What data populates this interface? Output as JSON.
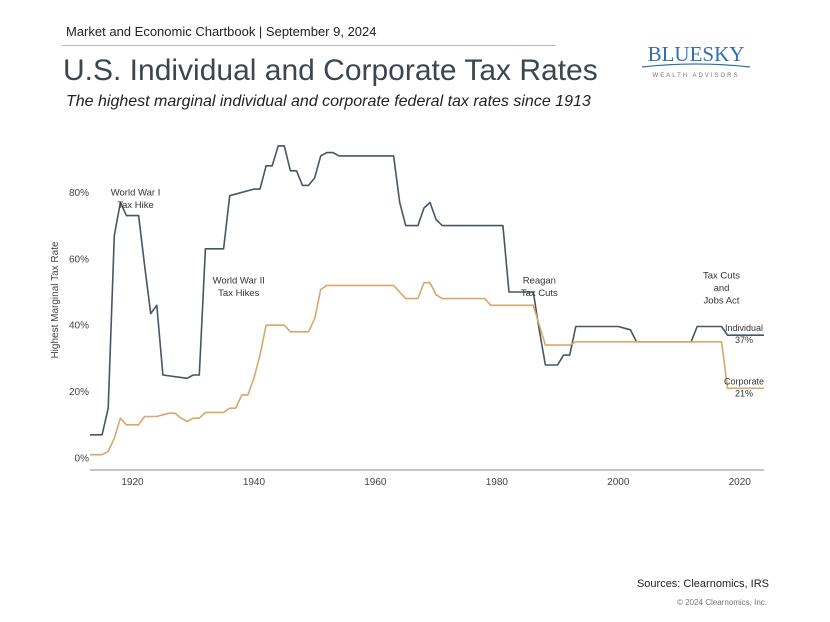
{
  "header": {
    "chartbook": "Market and Economic Chartbook | September 9, 2024",
    "title": "U.S. Individual and Corporate Tax Rates",
    "subtitle": "The highest marginal individual and corporate federal tax rates since 1913"
  },
  "logo": {
    "name": "BLUESKY",
    "tagline": "WEALTH ADVISORS",
    "color": "#2f6fb3"
  },
  "footer": {
    "sources": "Sources: Clearnomics, IRS",
    "copyright": "© 2024 Clearnomics, Inc."
  },
  "chart_data": {
    "type": "line",
    "ylabel": "Highest Marginal Tax Rate",
    "xlabel": "",
    "xlim": [
      1913,
      2024
    ],
    "ylim": [
      0,
      100
    ],
    "x_ticks": [
      1920,
      1940,
      1960,
      1980,
      2000,
      2020
    ],
    "y_ticks": [
      0,
      20,
      40,
      60,
      80
    ],
    "y_tick_labels": [
      "0%",
      "20%",
      "40%",
      "60%",
      "80%"
    ],
    "grid": false,
    "series": [
      {
        "name": "Individual",
        "color": "#4a5560",
        "end_label": [
          "Individual",
          "37%"
        ],
        "points": [
          [
            1913,
            7
          ],
          [
            1915,
            7
          ],
          [
            1916,
            15
          ],
          [
            1917,
            67
          ],
          [
            1918,
            77
          ],
          [
            1919,
            73
          ],
          [
            1920,
            73
          ],
          [
            1921,
            73
          ],
          [
            1922,
            58
          ],
          [
            1923,
            43.5
          ],
          [
            1924,
            46
          ],
          [
            1925,
            25
          ],
          [
            1929,
            24
          ],
          [
            1930,
            25
          ],
          [
            1931,
            25
          ],
          [
            1932,
            63
          ],
          [
            1935,
            63
          ],
          [
            1936,
            79
          ],
          [
            1940,
            81
          ],
          [
            1941,
            81
          ],
          [
            1942,
            88
          ],
          [
            1943,
            88
          ],
          [
            1944,
            94
          ],
          [
            1945,
            94
          ],
          [
            1946,
            86.5
          ],
          [
            1947,
            86.5
          ],
          [
            1948,
            82.1
          ],
          [
            1949,
            82.1
          ],
          [
            1950,
            84.4
          ],
          [
            1951,
            91
          ],
          [
            1952,
            92
          ],
          [
            1953,
            92
          ],
          [
            1954,
            91
          ],
          [
            1963,
            91
          ],
          [
            1964,
            77
          ],
          [
            1965,
            70
          ],
          [
            1967,
            70
          ],
          [
            1968,
            75.3
          ],
          [
            1969,
            77
          ],
          [
            1970,
            71.8
          ],
          [
            1971,
            70
          ],
          [
            1981,
            70
          ],
          [
            1982,
            50
          ],
          [
            1986,
            50
          ],
          [
            1987,
            38.5
          ],
          [
            1988,
            28
          ],
          [
            1990,
            28
          ],
          [
            1991,
            31
          ],
          [
            1992,
            31
          ],
          [
            1993,
            39.6
          ],
          [
            2000,
            39.6
          ],
          [
            2001,
            39.1
          ],
          [
            2002,
            38.6
          ],
          [
            2003,
            35
          ],
          [
            2012,
            35
          ],
          [
            2013,
            39.6
          ],
          [
            2017,
            39.6
          ],
          [
            2018,
            37
          ],
          [
            2024,
            37
          ]
        ]
      },
      {
        "name": "Corporate",
        "color": "#d9a66b",
        "end_label": [
          "Corporate",
          "21%"
        ],
        "points": [
          [
            1913,
            1
          ],
          [
            1915,
            1
          ],
          [
            1916,
            2
          ],
          [
            1917,
            6
          ],
          [
            1918,
            12
          ],
          [
            1919,
            10
          ],
          [
            1921,
            10
          ],
          [
            1922,
            12.5
          ],
          [
            1924,
            12.5
          ],
          [
            1925,
            13
          ],
          [
            1926,
            13.5
          ],
          [
            1927,
            13.5
          ],
          [
            1928,
            12
          ],
          [
            1929,
            11
          ],
          [
            1930,
            12
          ],
          [
            1931,
            12
          ],
          [
            1932,
            13.75
          ],
          [
            1935,
            13.75
          ],
          [
            1936,
            15
          ],
          [
            1937,
            15
          ],
          [
            1938,
            19
          ],
          [
            1939,
            19
          ],
          [
            1940,
            24
          ],
          [
            1941,
            31
          ],
          [
            1942,
            40
          ],
          [
            1945,
            40
          ],
          [
            1946,
            38
          ],
          [
            1949,
            38
          ],
          [
            1950,
            42
          ],
          [
            1951,
            50.75
          ],
          [
            1952,
            52
          ],
          [
            1963,
            52
          ],
          [
            1964,
            50
          ],
          [
            1965,
            48
          ],
          [
            1967,
            48
          ],
          [
            1968,
            52.8
          ],
          [
            1969,
            52.8
          ],
          [
            1970,
            49.2
          ],
          [
            1971,
            48
          ],
          [
            1978,
            48
          ],
          [
            1979,
            46
          ],
          [
            1986,
            46
          ],
          [
            1987,
            40
          ],
          [
            1988,
            34
          ],
          [
            1992,
            34
          ],
          [
            1993,
            35
          ],
          [
            2017,
            35
          ],
          [
            2018,
            21
          ],
          [
            2024,
            21
          ]
        ]
      }
    ],
    "annotations": [
      {
        "lines": [
          "World War I",
          "Tax Hike"
        ],
        "x": 1920.5,
        "y": 79
      },
      {
        "lines": [
          "World War II",
          "Tax Hikes"
        ],
        "x": 1937.5,
        "y": 52.5
      },
      {
        "lines": [
          "Reagan",
          "Tax Cuts"
        ],
        "x": 1987,
        "y": 52.5
      },
      {
        "lines": [
          "Tax Cuts",
          "and",
          "Jobs Act"
        ],
        "x": 2017,
        "y": 54
      }
    ]
  }
}
